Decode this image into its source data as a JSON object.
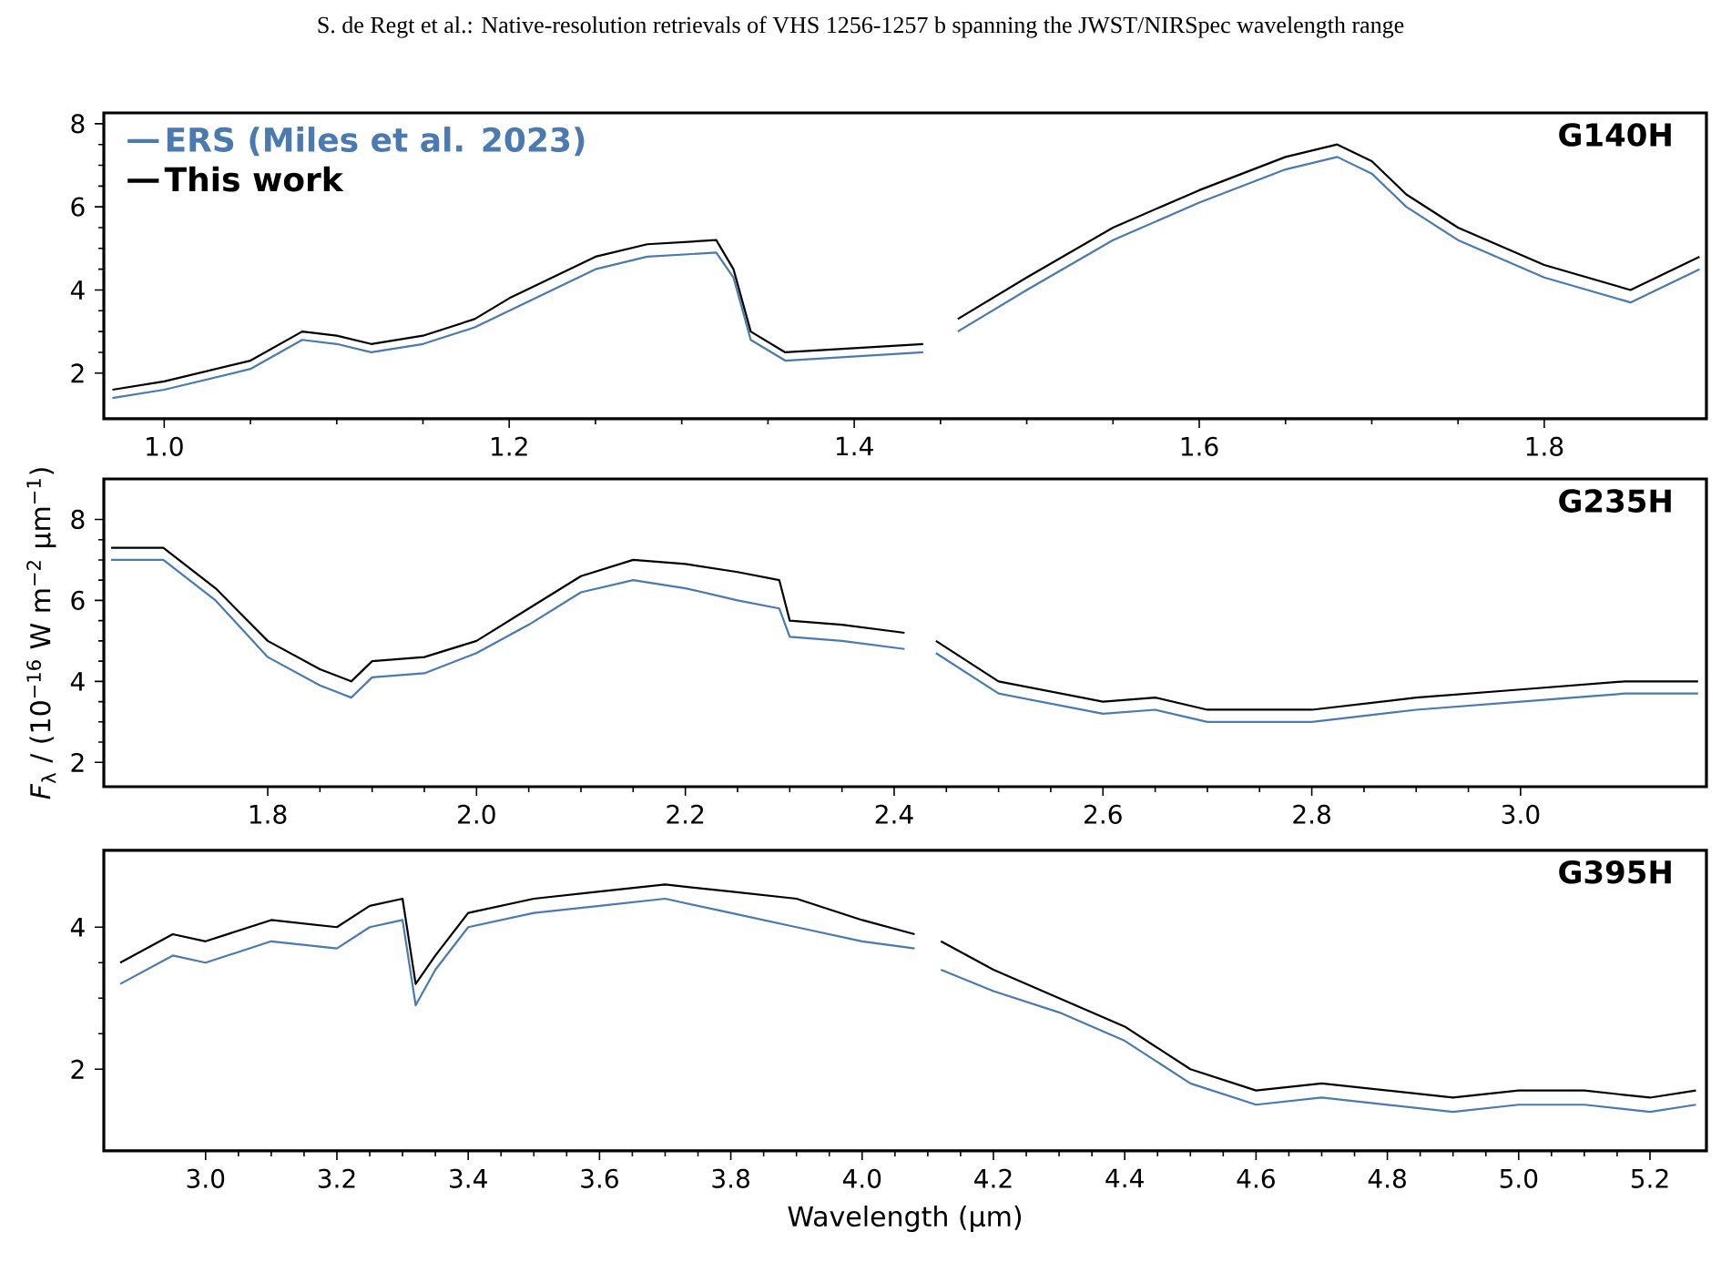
{
  "chart_data": [
    {
      "type": "line",
      "title": "G140H",
      "annotations": [
        "S. de Regt et al.: Native-resolution retrievals of VHS 1256-1257 b spanning the JWST/NIRSpec wavelength range"
      ],
      "legend": "top left",
      "xlim": [
        0.965,
        1.894
      ],
      "ylim": [
        0.9,
        8.26
      ],
      "xticks": [
        {
          "value": 1.0,
          "label": "1.0"
        },
        {
          "value": 1.2,
          "label": "1.2"
        },
        {
          "value": 1.4,
          "label": "1.4"
        },
        {
          "value": 1.6,
          "label": "1.6"
        },
        {
          "value": 1.8,
          "label": "1.8"
        }
      ],
      "yticks": [
        2,
        4,
        6,
        8
      ],
      "series": [
        {
          "name": "ERS (Miles et al. 2023)",
          "color": "#4a7ab0",
          "x": [
            0.97,
            1.0,
            1.05,
            1.08,
            1.1,
            1.12,
            1.15,
            1.18,
            1.2,
            1.25,
            1.28,
            1.32,
            1.33,
            1.34,
            1.36,
            1.4,
            1.44,
            1.45,
            1.46,
            1.5,
            1.55,
            1.6,
            1.65,
            1.68,
            1.7,
            1.72,
            1.75,
            1.8,
            1.85,
            1.89
          ],
          "values": [
            1.4,
            1.6,
            2.1,
            2.8,
            2.7,
            2.5,
            2.7,
            3.1,
            3.5,
            4.5,
            4.8,
            4.9,
            4.3,
            2.8,
            2.3,
            2.4,
            2.5,
            null,
            3.0,
            4.0,
            5.2,
            6.1,
            6.9,
            7.2,
            6.8,
            6.0,
            5.2,
            4.3,
            3.7,
            4.5
          ]
        },
        {
          "name": "This work",
          "color": "#000000",
          "x": [
            0.97,
            1.0,
            1.05,
            1.08,
            1.1,
            1.12,
            1.15,
            1.18,
            1.2,
            1.25,
            1.28,
            1.32,
            1.33,
            1.34,
            1.36,
            1.4,
            1.44,
            1.45,
            1.46,
            1.5,
            1.55,
            1.6,
            1.65,
            1.68,
            1.7,
            1.72,
            1.75,
            1.8,
            1.85,
            1.89
          ],
          "values": [
            1.6,
            1.8,
            2.3,
            3.0,
            2.9,
            2.7,
            2.9,
            3.3,
            3.8,
            4.8,
            5.1,
            5.2,
            4.5,
            3.0,
            2.5,
            2.6,
            2.7,
            null,
            3.3,
            4.3,
            5.5,
            6.4,
            7.2,
            7.5,
            7.1,
            6.3,
            5.5,
            4.6,
            4.0,
            4.8
          ]
        }
      ]
    },
    {
      "type": "line",
      "title": "G235H",
      "ylabel": "*F*$_{λ}$ / (10$^{−16}$ W m$^{−2}$ µm$^{−1}$)",
      "xlim": [
        1.643,
        3.178
      ],
      "ylim": [
        1.4,
        9.0
      ],
      "xticks": [
        {
          "value": 1.8,
          "label": "1.8"
        },
        {
          "value": 2.0,
          "label": "2.0"
        },
        {
          "value": 2.2,
          "label": "2.2"
        },
        {
          "value": 2.4,
          "label": "2.4"
        },
        {
          "value": 2.6,
          "label": "2.6"
        },
        {
          "value": 2.8,
          "label": "2.8"
        },
        {
          "value": 3.0,
          "label": "3.0"
        }
      ],
      "yticks": [
        2,
        4,
        6,
        8
      ],
      "series": [
        {
          "color": "#4a7ab0",
          "x": [
            1.65,
            1.7,
            1.75,
            1.8,
            1.85,
            1.88,
            1.9,
            1.95,
            2.0,
            2.05,
            2.1,
            2.15,
            2.2,
            2.25,
            2.29,
            2.3,
            2.35,
            2.41,
            2.42,
            2.44,
            2.5,
            2.6,
            2.65,
            2.7,
            2.8,
            2.9,
            3.0,
            3.1,
            3.17
          ],
          "values": [
            7.0,
            7.0,
            6.0,
            4.6,
            3.9,
            3.6,
            4.1,
            4.2,
            4.7,
            5.4,
            6.2,
            6.5,
            6.3,
            6.0,
            5.8,
            5.1,
            5.0,
            4.8,
            null,
            4.7,
            3.7,
            3.2,
            3.3,
            3.0,
            3.0,
            3.3,
            3.5,
            3.7,
            3.7
          ]
        },
        {
          "color": "#000000",
          "x": [
            1.65,
            1.7,
            1.75,
            1.8,
            1.85,
            1.88,
            1.9,
            1.95,
            2.0,
            2.05,
            2.1,
            2.15,
            2.2,
            2.25,
            2.29,
            2.3,
            2.35,
            2.41,
            2.42,
            2.44,
            2.5,
            2.6,
            2.65,
            2.7,
            2.8,
            2.9,
            3.0,
            3.1,
            3.17
          ],
          "values": [
            7.3,
            7.3,
            6.3,
            5.0,
            4.3,
            4.0,
            4.5,
            4.6,
            5.0,
            5.8,
            6.6,
            7.0,
            6.9,
            6.7,
            6.5,
            5.5,
            5.4,
            5.2,
            null,
            5.0,
            4.0,
            3.5,
            3.6,
            3.3,
            3.3,
            3.6,
            3.8,
            4.0,
            4.0
          ]
        }
      ]
    },
    {
      "type": "line",
      "title": "G395H",
      "xlabel": "Wavelength (µm)",
      "xlim": [
        2.845,
        5.286
      ],
      "ylim": [
        0.85,
        5.08
      ],
      "xticks": [
        {
          "value": 3.0,
          "label": "3.0"
        },
        {
          "value": 3.2,
          "label": "3.2"
        },
        {
          "value": 3.4,
          "label": "3.4"
        },
        {
          "value": 3.6,
          "label": "3.6"
        },
        {
          "value": 3.8,
          "label": "3.8"
        },
        {
          "value": 4.0,
          "label": "4.0"
        },
        {
          "value": 4.2,
          "label": "4.2"
        },
        {
          "value": 4.4,
          "label": "4.4"
        },
        {
          "value": 4.6,
          "label": "4.6"
        },
        {
          "value": 4.8,
          "label": "4.8"
        },
        {
          "value": 5.0,
          "label": "5.0"
        },
        {
          "value": 5.2,
          "label": "5.2"
        }
      ],
      "yticks": [
        2,
        4
      ],
      "series": [
        {
          "color": "#4a7ab0",
          "x": [
            2.87,
            2.95,
            3.0,
            3.1,
            3.2,
            3.25,
            3.3,
            3.32,
            3.35,
            3.4,
            3.5,
            3.6,
            3.7,
            3.8,
            3.9,
            4.0,
            4.08,
            4.1,
            4.12,
            4.2,
            4.3,
            4.4,
            4.5,
            4.6,
            4.7,
            4.8,
            4.9,
            5.0,
            5.1,
            5.2,
            5.27
          ],
          "values": [
            3.2,
            3.6,
            3.5,
            3.8,
            3.7,
            4.0,
            4.1,
            2.9,
            3.4,
            4.0,
            4.2,
            4.3,
            4.4,
            4.2,
            4.0,
            3.8,
            3.7,
            null,
            3.4,
            3.1,
            2.8,
            2.4,
            1.8,
            1.5,
            1.6,
            1.5,
            1.4,
            1.5,
            1.5,
            1.4,
            1.5
          ]
        },
        {
          "color": "#000000",
          "x": [
            2.87,
            2.95,
            3.0,
            3.1,
            3.2,
            3.25,
            3.3,
            3.32,
            3.35,
            3.4,
            3.5,
            3.6,
            3.7,
            3.8,
            3.9,
            4.0,
            4.08,
            4.1,
            4.12,
            4.2,
            4.3,
            4.4,
            4.5,
            4.6,
            4.7,
            4.8,
            4.9,
            5.0,
            5.1,
            5.2,
            5.27
          ],
          "values": [
            3.5,
            3.9,
            3.8,
            4.1,
            4.0,
            4.3,
            4.4,
            3.2,
            3.6,
            4.2,
            4.4,
            4.5,
            4.6,
            4.5,
            4.4,
            4.1,
            3.9,
            null,
            3.8,
            3.4,
            3.0,
            2.6,
            2.0,
            1.7,
            1.8,
            1.7,
            1.6,
            1.7,
            1.7,
            1.6,
            1.7
          ]
        }
      ]
    }
  ]
}
